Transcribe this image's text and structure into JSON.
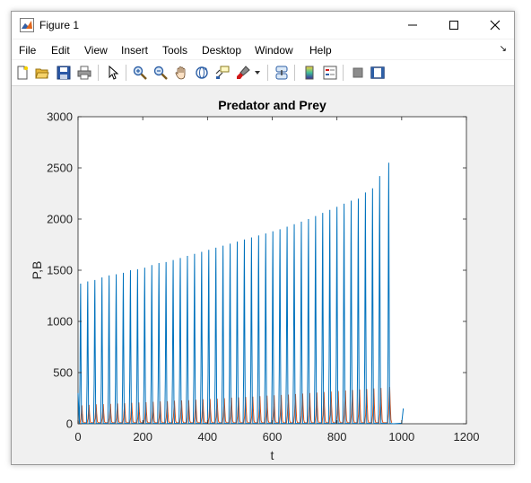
{
  "window": {
    "title": "Figure 1"
  },
  "menu": {
    "items": [
      "File",
      "Edit",
      "View",
      "Insert",
      "Tools",
      "Desktop",
      "Window",
      "Help"
    ]
  },
  "toolbar": {
    "buttons": [
      "new-figure-icon",
      "open-file-icon",
      "save-icon",
      "print-icon",
      "select-arrow-icon",
      "zoom-in-icon",
      "zoom-out-icon",
      "pan-hand-icon",
      "rotate-3d-icon",
      "data-cursor-icon",
      "brush-icon",
      "brush-dropdown-icon",
      "link-plot-icon",
      "colorbar-icon",
      "legend-icon",
      "hide-plot-tools-icon",
      "show-plot-tools-icon"
    ]
  },
  "colors": {
    "series_prey": "#0072BD",
    "series_predator": "#D95319"
  },
  "chart_data": {
    "type": "line",
    "title": "Predator and Prey",
    "xlabel": "t",
    "ylabel": "P,B",
    "xlim": [
      0,
      1200
    ],
    "ylim": [
      0,
      3000
    ],
    "xticks": [
      0,
      200,
      400,
      600,
      800,
      1000,
      1200
    ],
    "yticks": [
      0,
      500,
      1000,
      1500,
      2000,
      2500,
      3000
    ],
    "grid": false,
    "series": [
      {
        "name": "",
        "color": "#0072BD",
        "peak_t": [
          8,
          30,
          52,
          74,
          96,
          118,
          140,
          162,
          184,
          206,
          228,
          250,
          272,
          294,
          316,
          338,
          360,
          382,
          404,
          426,
          448,
          470,
          492,
          514,
          536,
          558,
          580,
          602,
          624,
          646,
          668,
          690,
          712,
          734,
          756,
          778,
          800,
          822,
          844,
          866,
          888,
          910,
          932,
          960
        ],
        "peak_values": [
          1370,
          1390,
          1405,
          1430,
          1450,
          1460,
          1475,
          1500,
          1510,
          1525,
          1550,
          1570,
          1580,
          1600,
          1620,
          1640,
          1660,
          1680,
          1700,
          1720,
          1740,
          1760,
          1780,
          1800,
          1820,
          1840,
          1860,
          1880,
          1900,
          1925,
          1950,
          1975,
          2000,
          2030,
          2060,
          2090,
          2120,
          2150,
          2180,
          2200,
          2260,
          2300,
          2420,
          2550
        ],
        "tail": [
          [
            975,
            0
          ],
          [
            1000,
            5
          ],
          [
            1005,
            150
          ]
        ]
      },
      {
        "name": "",
        "color": "#D95319",
        "peak_t": [
          12,
          34,
          56,
          78,
          100,
          122,
          144,
          166,
          188,
          210,
          232,
          254,
          276,
          298,
          320,
          342,
          364,
          386,
          408,
          430,
          452,
          474,
          496,
          518,
          540,
          562,
          584,
          606,
          628,
          650,
          672,
          694,
          716,
          738,
          760,
          782,
          804,
          826,
          848,
          870,
          892,
          914,
          936,
          963
        ],
        "peak_values": [
          180,
          185,
          190,
          192,
          195,
          198,
          200,
          205,
          208,
          210,
          215,
          218,
          220,
          225,
          228,
          230,
          235,
          240,
          242,
          245,
          250,
          255,
          258,
          262,
          265,
          270,
          275,
          278,
          282,
          285,
          290,
          295,
          300,
          305,
          310,
          315,
          320,
          325,
          330,
          335,
          340,
          345,
          350,
          360
        ]
      }
    ]
  }
}
